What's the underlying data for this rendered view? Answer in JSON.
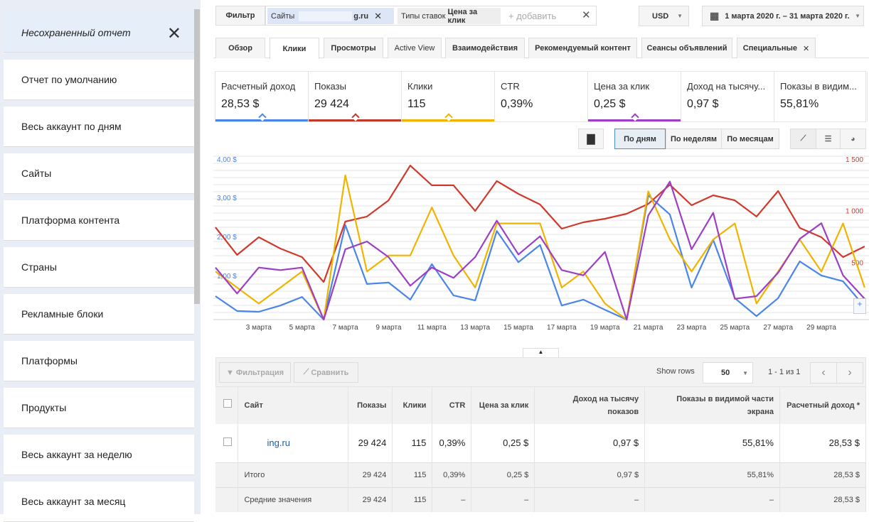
{
  "sidebar": {
    "active": "Несохраненный отчет",
    "items": [
      "Отчет по умолчанию",
      "Весь аккаунт по дням",
      "Сайты",
      "Платформа контента",
      "Страны",
      "Рекламные блоки",
      "Платформы",
      "Продукты",
      "Весь аккаунт за неделю",
      "Весь аккаунт за месяц"
    ]
  },
  "filter": {
    "label": "Фильтр",
    "chip1_key": "Сайты",
    "chip1_val": "g.ru",
    "chip2_key": "Типы ставок",
    "chip2_val": "Цена за клик",
    "add": "+ добавить"
  },
  "currency": "USD",
  "date_range": "1 марта 2020 г. – 31 марта 2020 г.",
  "tabs": [
    "Обзор",
    "Клики",
    "Просмотры",
    "Active View",
    "Взаимодействия",
    "Рекомендуемый контент",
    "Сеансы объявлений",
    "Специальные"
  ],
  "metrics": [
    {
      "label": "Расчетный доход",
      "value": "28,53 $",
      "color": "#4a86e8"
    },
    {
      "label": "Показы",
      "value": "29 424",
      "color": "#c0392b"
    },
    {
      "label": "Клики",
      "value": "115",
      "color": "#f0b400"
    },
    {
      "label": "CTR",
      "value": "0,39%",
      "color": ""
    },
    {
      "label": "Цена за клик",
      "value": "0,25 $",
      "color": "#9c3fc2"
    },
    {
      "label": "Доход на тысячу...",
      "value": "0,97 $",
      "color": ""
    },
    {
      "label": "Показы в видим...",
      "value": "55,81%",
      "color": ""
    }
  ],
  "periods": [
    "По дням",
    "По неделям",
    "По месяцам"
  ],
  "chart_data": {
    "type": "line",
    "x": [
      "1 марта",
      "2 марта",
      "3 марта",
      "4 марта",
      "5 марта",
      "6 марта",
      "7 марта",
      "8 марта",
      "9 марта",
      "10 марта",
      "11 марта",
      "12 марта",
      "13 марта",
      "14 марта",
      "15 марта",
      "16 марта",
      "17 марта",
      "18 марта",
      "19 марта",
      "20 марта",
      "21 марта",
      "22 марта",
      "23 марта",
      "24 марта",
      "25 марта",
      "26 марта",
      "27 марта",
      "28 марта",
      "29 марта",
      "30 марта",
      "31 марта"
    ],
    "xticks": [
      "3 марта",
      "5 марта",
      "7 марта",
      "9 марта",
      "11 марта",
      "13 марта",
      "15 марта",
      "17 марта",
      "19 марта",
      "21 марта",
      "23 марта",
      "25 марта",
      "27 марта",
      "29 марта"
    ],
    "left_axis": {
      "ticks": [
        "4,00 $",
        "3,00 $",
        "2,00 $",
        "1,00 $"
      ],
      "values": [
        4,
        3,
        2,
        1
      ],
      "ylim": [
        0,
        4
      ]
    },
    "right_axis": {
      "ticks": [
        "1 500",
        "1 000",
        "500"
      ],
      "values": [
        1500,
        1000,
        500
      ],
      "ylim": [
        0,
        1500
      ]
    },
    "series": [
      {
        "name": "Расчетный доход",
        "color": "#4a86e8",
        "ymax": 4,
        "values": [
          0.6,
          0.22,
          0.2,
          0.36,
          0.58,
          0,
          2.42,
          0.91,
          0.95,
          0.51,
          1.42,
          0.62,
          0.49,
          2.27,
          1.47,
          1.91,
          0.36,
          0.51,
          0.25,
          0,
          3.18,
          2.69,
          0.82,
          2.04,
          0.55,
          0.09,
          0.55,
          1.49,
          1.13,
          0.98,
          0.33
        ]
      },
      {
        "name": "Показы",
        "color": "#d0392b",
        "ymax": 1500,
        "values": [
          886,
          621,
          791,
          682,
          600,
          361,
          941,
          989,
          1145,
          1479,
          1289,
          1289,
          1043,
          1330,
          1207,
          1105,
          873,
          934,
          968,
          1016,
          1111,
          1295,
          1098,
          1193,
          1145,
          989,
          1234,
          880,
          791,
          600,
          702
        ]
      },
      {
        "name": "Клики",
        "color": "#f0b400",
        "ymax": 9.75,
        "values": [
          3,
          2,
          1,
          2,
          3,
          0,
          9,
          3,
          4,
          4,
          7,
          4,
          2,
          6,
          6,
          6,
          2,
          3,
          1,
          0,
          8,
          5,
          3,
          5,
          6,
          1,
          3,
          5,
          3,
          6,
          2
        ]
      },
      {
        "name": "Цена за клик",
        "color": "#9c3fc2",
        "ymax": 0.6,
        "values": [
          0.2,
          0.1,
          0.2,
          0.19,
          0.2,
          0,
          0.27,
          0.3,
          0.24,
          0.13,
          0.2,
          0.16,
          0.24,
          0.38,
          0.25,
          0.32,
          0.19,
          0.17,
          0.26,
          0,
          0.4,
          0.53,
          0.27,
          0.41,
          0.08,
          0.09,
          0.18,
          0.31,
          0.37,
          0.17,
          0.08
        ]
      }
    ]
  },
  "table": {
    "filter_btn": "Фильтрация",
    "compare_btn": "Сравнить",
    "show_rows_label": "Show rows",
    "show_rows": "50",
    "pagination": "1 - 1 из 1",
    "headers": [
      "Сайт",
      "Показы",
      "Клики",
      "CTR",
      "Цена за клик",
      "Доход на тысячу показов",
      "Показы в видимой части экрана",
      "Расчетный доход *"
    ],
    "row": [
      "ing.ru",
      "29 424",
      "115",
      "0,39%",
      "0,25 $",
      "0,97 $",
      "55,81%",
      "28,53 $"
    ],
    "total": [
      "Итого",
      "29 424",
      "115",
      "0,39%",
      "0,25 $",
      "0,97 $",
      "55,81%",
      "28,53 $"
    ],
    "avg": [
      "Средние значения",
      "29 424",
      "115",
      "–",
      "–",
      "–",
      "–",
      "28,53 $"
    ]
  }
}
